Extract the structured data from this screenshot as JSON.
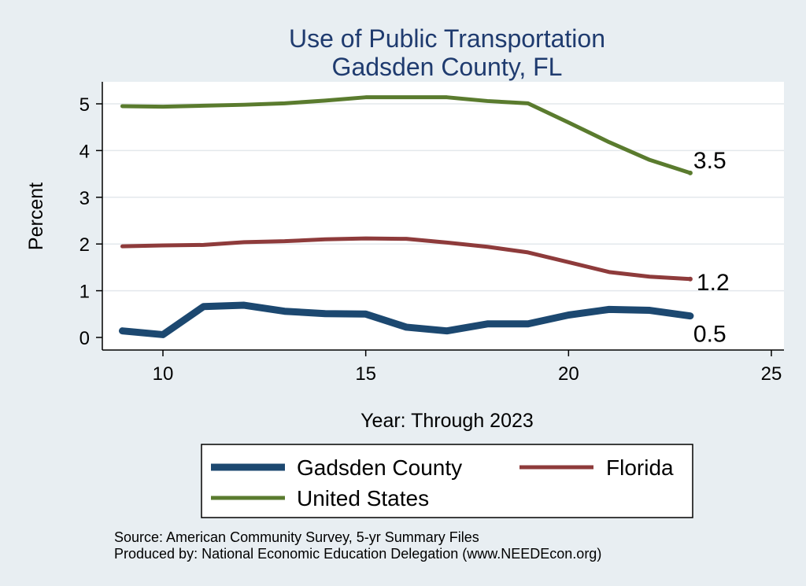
{
  "chart_data": {
    "type": "line",
    "title": [
      "Use of Public Transportation",
      "Gadsden County, FL"
    ],
    "xlabel": "Year: Through 2023",
    "ylabel": "Percent",
    "xlim": [
      9,
      25
    ],
    "ylim": [
      0,
      5.3
    ],
    "xticks": [
      10,
      15,
      20,
      25
    ],
    "yticks": [
      0,
      1,
      2,
      3,
      4,
      5
    ],
    "grid": "horizontal",
    "legend_position": "bottom",
    "x": [
      9,
      10,
      11,
      12,
      13,
      14,
      15,
      16,
      17,
      18,
      19,
      20,
      21,
      22,
      23
    ],
    "series": [
      {
        "name": "Gadsden County",
        "color": "#1c4870",
        "values": [
          0.14,
          0.06,
          0.66,
          0.69,
          0.56,
          0.51,
          0.5,
          0.22,
          0.14,
          0.29,
          0.29,
          0.48,
          0.6,
          0.58,
          0.46
        ],
        "end_label": "0.5"
      },
      {
        "name": "Florida",
        "color": "#8e3b3b",
        "values": [
          1.95,
          1.97,
          1.98,
          2.04,
          2.06,
          2.1,
          2.12,
          2.11,
          2.03,
          1.94,
          1.82,
          1.61,
          1.4,
          1.3,
          1.25
        ],
        "end_label": "1.2"
      },
      {
        "name": "United States",
        "color": "#5a7b2e",
        "values": [
          4.95,
          4.94,
          4.96,
          4.98,
          5.01,
          5.07,
          5.14,
          5.14,
          5.14,
          5.06,
          5.01,
          4.6,
          4.18,
          3.8,
          3.52
        ],
        "end_label": "3.5"
      }
    ],
    "notes": [
      "Source: American Community Survey, 5-yr Summary Files",
      "Produced by: National Economic Education Delegation (www.NEEDEcon.org)"
    ]
  }
}
